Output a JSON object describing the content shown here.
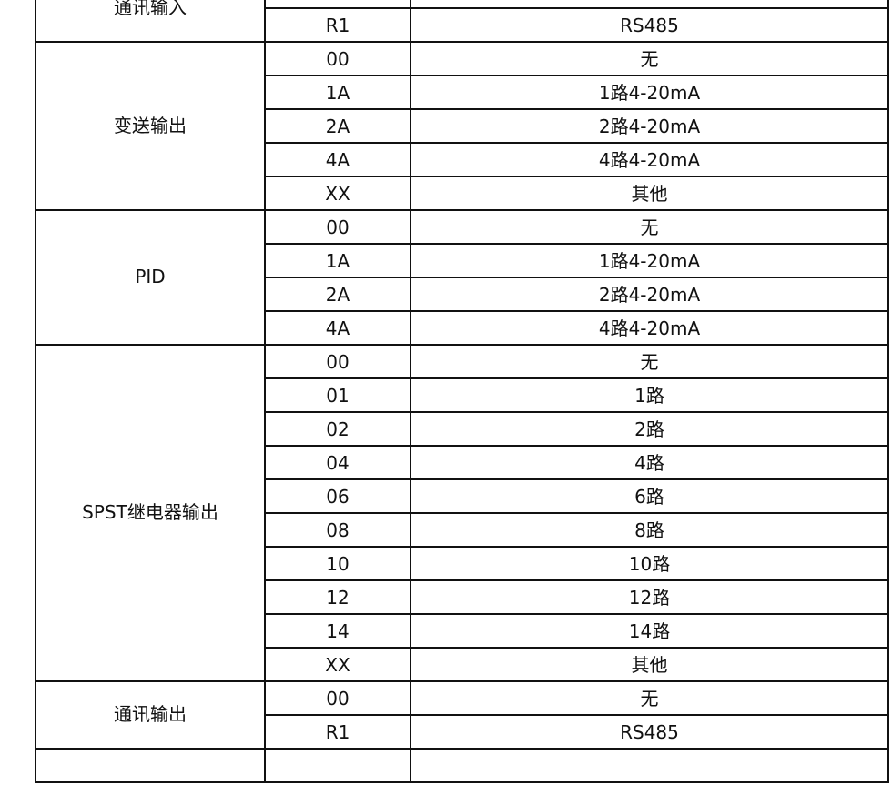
{
  "groups": [
    {
      "label": "通讯输入",
      "rows": [
        {
          "code": "",
          "desc": ""
        },
        {
          "code": "R1",
          "desc": "RS485"
        }
      ]
    },
    {
      "label": "变送输出",
      "rows": [
        {
          "code": "00",
          "desc": "无"
        },
        {
          "code": "1A",
          "desc": "1路4-20mA"
        },
        {
          "code": "2A",
          "desc": "2路4-20mA"
        },
        {
          "code": "4A",
          "desc": "4路4-20mA"
        },
        {
          "code": "XX",
          "desc": "其他"
        }
      ]
    },
    {
      "label": "PID",
      "rows": [
        {
          "code": "00",
          "desc": "无"
        },
        {
          "code": "1A",
          "desc": "1路4-20mA"
        },
        {
          "code": "2A",
          "desc": "2路4-20mA"
        },
        {
          "code": "4A",
          "desc": "4路4-20mA"
        }
      ]
    },
    {
      "label": "SPST继电器输出",
      "rows": [
        {
          "code": "00",
          "desc": "无"
        },
        {
          "code": "01",
          "desc": "1路"
        },
        {
          "code": "02",
          "desc": "2路"
        },
        {
          "code": "04",
          "desc": "4路"
        },
        {
          "code": "06",
          "desc": "6路"
        },
        {
          "code": "08",
          "desc": "8路"
        },
        {
          "code": "10",
          "desc": "10路"
        },
        {
          "code": "12",
          "desc": "12路"
        },
        {
          "code": "14",
          "desc": "14路"
        },
        {
          "code": "XX",
          "desc": "其他"
        }
      ]
    },
    {
      "label": "通讯输出",
      "rows": [
        {
          "code": "00",
          "desc": "无"
        },
        {
          "code": "R1",
          "desc": "RS485"
        }
      ]
    }
  ]
}
